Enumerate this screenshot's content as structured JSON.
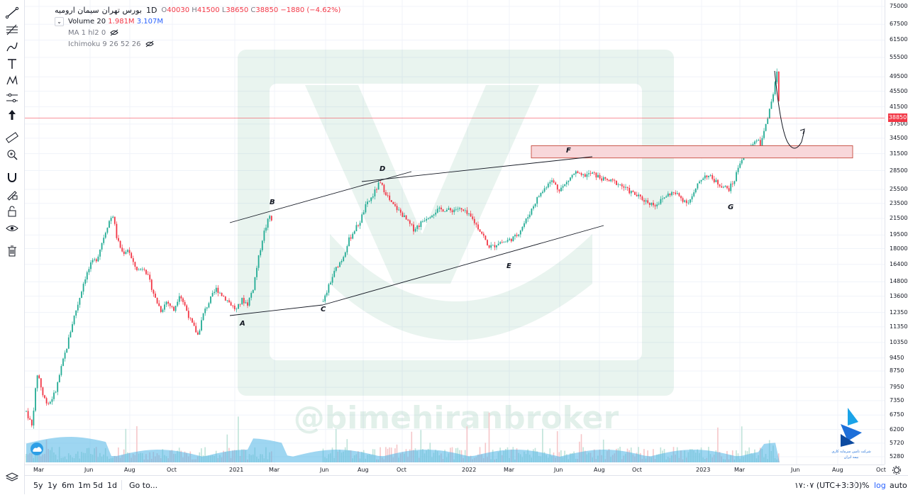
{
  "legend": {
    "symbol": "سیمان ارومیه",
    "exchange": "بورس تهران",
    "interval": "1D",
    "open_label": "O",
    "open": "40030",
    "high_label": "H",
    "high": "41500",
    "low_label": "L",
    "low": "38650",
    "close_label": "C",
    "close": "38850",
    "change": "−1880 (−4.62%)",
    "volume_label": "Volume 20",
    "volume_v1": "1.981M",
    "volume_v2": "3.107M",
    "ma_label": "MA 1 hl2 0",
    "ichimoku_label": "Ichimoku 9 26 52 26"
  },
  "watermark": "@bimehiranbroker",
  "broker_logo": {
    "line1": "شرکت تامین سرمایه کاری",
    "line2": "بیمه ایران"
  },
  "last_price_tag": "38850",
  "bottom": {
    "ranges": [
      "5y",
      "1y",
      "6m",
      "1m",
      "5d",
      "1d"
    ],
    "goto": "Go to...",
    "time": "۱۷:۰۷ (UTC+3:30)",
    "pct": "%",
    "log": "log",
    "auto": "auto"
  },
  "colors": {
    "up": "#22ab94",
    "down": "#f23645",
    "volume": "#4fb4e6",
    "zone_fill": "#f8d7da",
    "zone_border": "#c0392b"
  },
  "chart_data": {
    "type": "candlestick",
    "scale": "log",
    "ylim": [
      5280,
      75000
    ],
    "price_ticks": [
      75000,
      67500,
      61500,
      55500,
      49500,
      45500,
      41500,
      37500,
      34500,
      31500,
      28500,
      25500,
      23500,
      21500,
      19500,
      18000,
      16400,
      14800,
      13600,
      12350,
      11350,
      10350,
      9450,
      8750,
      7950,
      7350,
      6750,
      6200,
      5720,
      5280
    ],
    "time_ticks": [
      "Mar",
      "Jun",
      "Aug",
      "Oct",
      "2021",
      "Mar",
      "Jun",
      "Aug",
      "Oct",
      "2022",
      "Mar",
      "Jun",
      "Aug",
      "Oct",
      "2023",
      "Mar",
      "Jun",
      "Aug",
      "Oct"
    ],
    "last_price": 38850,
    "wave_labels": [
      "A",
      "B",
      "C",
      "D",
      "E",
      "F",
      "G"
    ],
    "resistance_zone": [
      30700,
      33000
    ]
  }
}
